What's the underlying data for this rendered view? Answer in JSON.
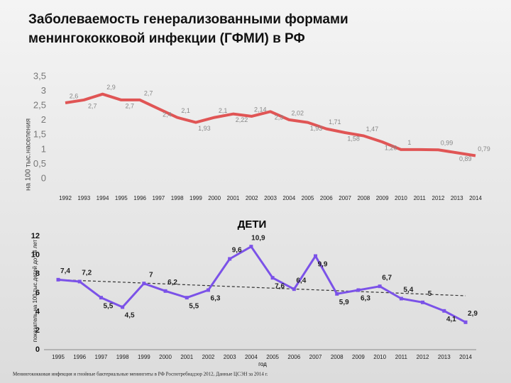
{
  "title": "Заболеваемость генерализованными формами менингококковой инфекции (ГФМИ) в РФ",
  "chart_data": [
    {
      "type": "line",
      "ylabel": "на 100 тыс.населения",
      "categories": [
        "1992",
        "1993",
        "1994",
        "1995",
        "1996",
        "1997",
        "1998",
        "1999",
        "2000",
        "2001",
        "2002",
        "2003",
        "2004",
        "2005",
        "2006",
        "2007",
        "2008",
        "2009",
        "2010",
        "2011",
        "2012",
        "2013",
        "2014"
      ],
      "series": [
        {
          "color": "#e05555",
          "values": [
            2.6,
            2.7,
            2.9,
            2.7,
            2.7,
            2.4,
            2.1,
            1.93,
            2.1,
            2.22,
            2.14,
            2.3,
            2.02,
            1.93,
            1.71,
            1.58,
            1.47,
            1.26,
            1,
            1,
            0.99,
            0.89,
            0.79
          ],
          "value_labels": [
            "2,6",
            "2,7",
            "2,9",
            "2,7",
            "2,7",
            "2,4",
            "2,1",
            "1,93",
            "2,1",
            "2,22",
            "2,14",
            "2,3",
            "2,02",
            "1,93",
            "1,71",
            "1,58",
            "1,47",
            "1,26",
            "1",
            null,
            "0,99",
            "0,89",
            "0,79"
          ]
        }
      ],
      "ylim": [
        0,
        3.5
      ],
      "yticks": [
        0,
        {
          "value": 0.5,
          "label": "0,5"
        },
        1,
        {
          "value": 1.5,
          "label": "1,5"
        },
        2,
        {
          "value": 2.5,
          "label": "2,5"
        },
        3,
        {
          "value": 3.5,
          "label": "3,5"
        }
      ]
    },
    {
      "type": "line",
      "title": "ДЕТИ",
      "ylabel": "показатель на 100 тыс.детей до 14 лет",
      "xlabel": "год",
      "categories": [
        "1995",
        "1996",
        "1997",
        "1998",
        "1999",
        "2000",
        "2001",
        "2002",
        "2003",
        "2004",
        "2005",
        "2006",
        "2007",
        "2008",
        "2009",
        "2010",
        "2011",
        "2012",
        "2013",
        "2014"
      ],
      "series": [
        {
          "color": "#7b52e8",
          "values": [
            7.4,
            7.2,
            5.5,
            4.5,
            7,
            6.2,
            5.5,
            6.3,
            9.6,
            10.9,
            7.6,
            6.4,
            9.9,
            5.9,
            6.3,
            6.7,
            5.4,
            5,
            4.1,
            2.9
          ],
          "value_labels": [
            "7,4",
            "7,2",
            "5,5",
            "4,5",
            "7",
            "6,2",
            "5,5",
            "6,3",
            "9,6",
            "10,9",
            "7,6",
            "6,4",
            "9,9",
            "5,9",
            "6,3",
            "6,7",
            "5,4",
            "5",
            "4,1",
            "2,9"
          ]
        }
      ],
      "trend": {
        "start": 7.4,
        "end": 5.7
      },
      "ylim": [
        0,
        12
      ],
      "yticks": [
        0,
        2,
        4,
        6,
        8,
        10,
        12
      ]
    }
  ],
  "footnote": "Менингококковая инфекция и гнойные бактериальные менингиты в РФ Роспотребнадзор 2012, Данные ЦСЭН за 2014 г."
}
